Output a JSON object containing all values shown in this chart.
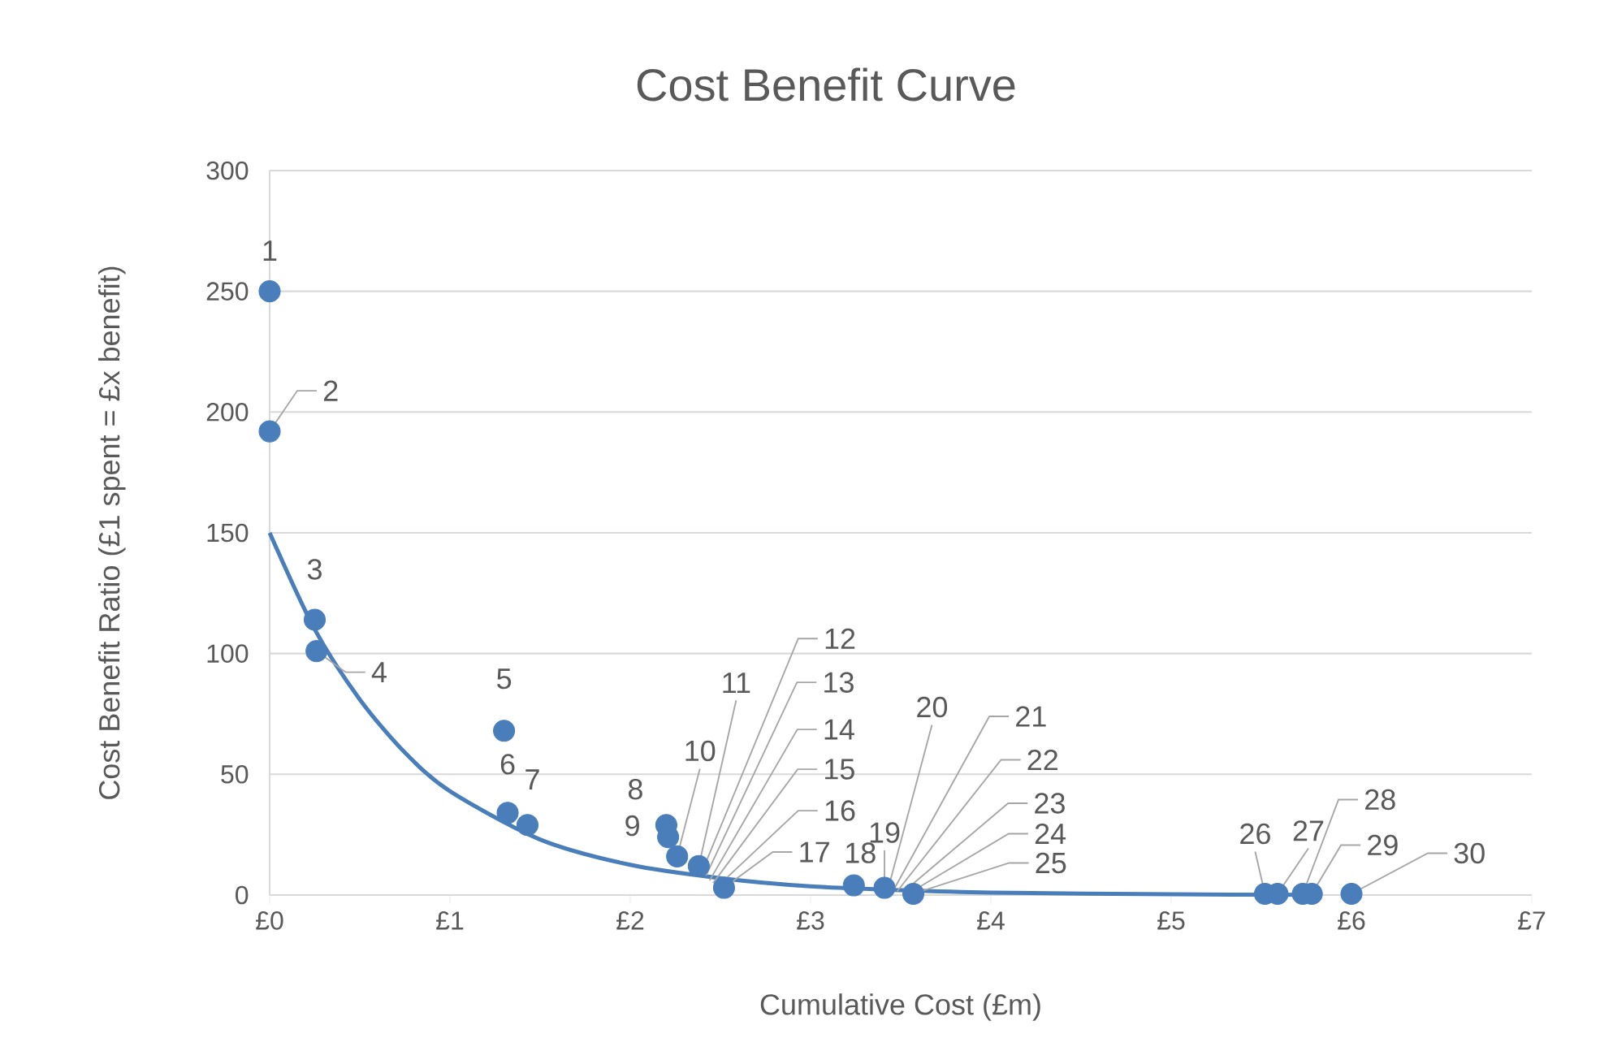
{
  "chart_data": {
    "type": "scatter",
    "title": "Cost Benefit Curve",
    "xlabel": "Cumulative Cost (£m)",
    "ylabel": "Cost Benefit Ratio (£1 spent = £x benefit)",
    "xlim": [
      0,
      7
    ],
    "ylim": [
      0,
      300
    ],
    "xticks": [
      {
        "value": 0,
        "label": "£0"
      },
      {
        "value": 1,
        "label": "£1"
      },
      {
        "value": 2,
        "label": "£2"
      },
      {
        "value": 3,
        "label": "£3"
      },
      {
        "value": 4,
        "label": "£4"
      },
      {
        "value": 5,
        "label": "£5"
      },
      {
        "value": 6,
        "label": "£6"
      },
      {
        "value": 7,
        "label": "£7"
      }
    ],
    "yticks": [
      0,
      50,
      100,
      150,
      200,
      250,
      300
    ],
    "grid": "y",
    "series": [
      {
        "color": "#4a7ebb",
        "marker": "circle",
        "x": [
          0,
          0,
          0.25,
          0.26,
          1.3,
          1.32,
          1.43,
          2.2,
          2.21,
          2.26,
          2.38,
          2.4,
          2.42,
          2.44,
          2.46,
          2.49,
          2.52,
          3.24,
          3.41,
          3.43,
          3.46,
          3.48,
          3.51,
          3.54,
          3.57,
          5.52,
          5.59,
          5.73,
          5.78,
          6.0
        ],
        "values": [
          250,
          192,
          114,
          101,
          68,
          34,
          29,
          29,
          24,
          16,
          12,
          null,
          null,
          null,
          null,
          null,
          3,
          4,
          3,
          null,
          null,
          null,
          null,
          null,
          0.5,
          0.5,
          0.5,
          0.5,
          0.5,
          0.5
        ]
      },
      {
        "type": "line",
        "color": "#4a7ebb",
        "marker": "none",
        "x": [
          0,
          0.25,
          0.5,
          0.75,
          1,
          1.5,
          2,
          2.5,
          3,
          3.5,
          4,
          5,
          5.8
        ],
        "values": [
          150,
          110,
          81,
          59,
          43,
          23,
          12.5,
          7,
          3.6,
          2,
          1,
          0.3,
          0.1
        ]
      }
    ],
    "annotations": [
      {
        "text": "1",
        "x": 0,
        "y": 250
      },
      {
        "text": "2",
        "x": 0,
        "y": 192
      },
      {
        "text": "3",
        "x": 0.25,
        "y": 114
      },
      {
        "text": "4",
        "x": 0.26,
        "y": 101
      },
      {
        "text": "5",
        "x": 1.3,
        "y": 68
      },
      {
        "text": "6",
        "x": 1.32,
        "y": 34
      },
      {
        "text": "7",
        "x": 1.43,
        "y": 29
      },
      {
        "text": "8",
        "x": 2.2,
        "y": 29
      },
      {
        "text": "9",
        "x": 2.21,
        "y": 24
      },
      {
        "text": "10",
        "x": 2.26,
        "y": 16
      },
      {
        "text": "11",
        "x": 2.38,
        "y": 12
      },
      {
        "text": "12",
        "x": 2.4,
        "y": 10
      },
      {
        "text": "13",
        "x": 2.42,
        "y": 8
      },
      {
        "text": "14",
        "x": 2.44,
        "y": 6
      },
      {
        "text": "15",
        "x": 2.46,
        "y": 5
      },
      {
        "text": "16",
        "x": 2.49,
        "y": 4
      },
      {
        "text": "17",
        "x": 2.52,
        "y": 3
      },
      {
        "text": "18",
        "x": 3.24,
        "y": 4
      },
      {
        "text": "19",
        "x": 3.41,
        "y": 3
      },
      {
        "text": "20",
        "x": 3.43,
        "y": 2.5
      },
      {
        "text": "21",
        "x": 3.46,
        "y": 2
      },
      {
        "text": "22",
        "x": 3.48,
        "y": 1.5
      },
      {
        "text": "23",
        "x": 3.51,
        "y": 1
      },
      {
        "text": "24",
        "x": 3.54,
        "y": 0.5
      },
      {
        "text": "25",
        "x": 3.57,
        "y": 0.5
      },
      {
        "text": "26",
        "x": 5.52,
        "y": 0.5
      },
      {
        "text": "27",
        "x": 5.59,
        "y": 0.5
      },
      {
        "text": "28",
        "x": 5.73,
        "y": 0.5
      },
      {
        "text": "29",
        "x": 5.78,
        "y": 0.5
      },
      {
        "text": "30",
        "x": 6.0,
        "y": 0.5
      }
    ]
  }
}
